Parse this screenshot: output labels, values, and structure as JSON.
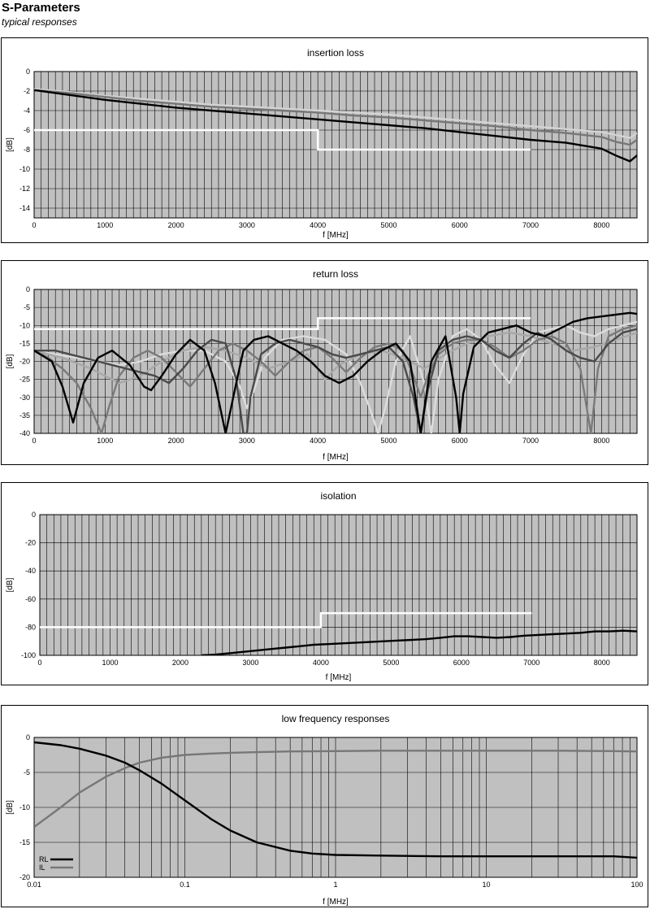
{
  "page": {
    "title": "S-Parameters",
    "subtitle": "typical responses"
  },
  "chart_data": [
    {
      "id": "insertion",
      "type": "line",
      "title": "insertion loss",
      "xlabel": "f [MHz]",
      "ylabel": "[dB]",
      "xlim": [
        0,
        8500
      ],
      "ylim": [
        -15,
        0
      ],
      "x_ticks": [
        0,
        1000,
        2000,
        3000,
        4000,
        5000,
        6000,
        7000,
        8000
      ],
      "y_ticks": [
        0,
        -2,
        -4,
        -6,
        -8,
        -10,
        -12,
        -14
      ],
      "grid": true,
      "series": [
        {
          "color": "#000000",
          "x": [
            0,
            500,
            1000,
            1500,
            2000,
            2500,
            3000,
            3500,
            4000,
            4500,
            5000,
            5500,
            6000,
            6500,
            7000,
            7500,
            8000,
            8200,
            8400,
            8500
          ],
          "y": [
            -1.9,
            -2.4,
            -2.9,
            -3.3,
            -3.7,
            -4.0,
            -4.3,
            -4.6,
            -4.9,
            -5.2,
            -5.5,
            -5.8,
            -6.2,
            -6.6,
            -7.0,
            -7.3,
            -7.9,
            -8.6,
            -9.2,
            -8.6
          ]
        },
        {
          "color": "#777777",
          "x": [
            0,
            500,
            1000,
            1500,
            2000,
            2500,
            3000,
            3500,
            4000,
            4500,
            5000,
            5500,
            6000,
            6500,
            7000,
            7500,
            8000,
            8200,
            8400,
            8500
          ],
          "y": [
            -1.9,
            -2.2,
            -2.6,
            -3.0,
            -3.3,
            -3.6,
            -3.8,
            -4.0,
            -4.2,
            -4.5,
            -4.7,
            -5.0,
            -5.3,
            -5.6,
            -6.0,
            -6.3,
            -6.7,
            -7.2,
            -7.5,
            -7.0
          ]
        },
        {
          "color": "#d4d4d4",
          "x": [
            0,
            500,
            1000,
            1500,
            2000,
            2500,
            3000,
            3500,
            4000,
            4500,
            5000,
            5500,
            6000,
            6500,
            7000,
            7500,
            8000,
            8200,
            8400,
            8500
          ],
          "y": [
            -1.8,
            -2.1,
            -2.5,
            -2.8,
            -3.1,
            -3.4,
            -3.6,
            -3.8,
            -4.0,
            -4.2,
            -4.4,
            -4.7,
            -5.0,
            -5.3,
            -5.6,
            -5.9,
            -6.2,
            -6.5,
            -6.8,
            -6.3
          ]
        }
      ],
      "limit_line": {
        "color": "#ffffff",
        "x": [
          0,
          4000,
          4000,
          7000
        ],
        "y": [
          -6,
          -6,
          -8,
          -8
        ]
      }
    },
    {
      "id": "return",
      "type": "line",
      "title": "return loss",
      "xlabel": "f [MHz]",
      "ylabel": "[dB]",
      "xlim": [
        0,
        8500
      ],
      "ylim": [
        -40,
        0
      ],
      "x_ticks": [
        0,
        1000,
        2000,
        3000,
        4000,
        5000,
        6000,
        7000,
        8000
      ],
      "y_ticks": [
        0,
        -5,
        -10,
        -15,
        -20,
        -25,
        -30,
        -35,
        -40
      ],
      "grid": true,
      "series": [
        {
          "color": "#000000",
          "x": [
            0,
            250,
            400,
            550,
            700,
            900,
            1100,
            1350,
            1550,
            1650,
            1800,
            2000,
            2200,
            2400,
            2550,
            2700,
            2850,
            2950,
            3100,
            3300,
            3500,
            3700,
            3900,
            4100,
            4300,
            4500,
            4700,
            4900,
            5100,
            5300,
            5450,
            5600,
            5800,
            5950,
            6000,
            6050,
            6200,
            6400,
            6600,
            6800,
            7000,
            7200,
            7400,
            7600,
            7800,
            8000,
            8200,
            8400,
            8500
          ],
          "y": [
            -17,
            -20,
            -27,
            -37,
            -26,
            -19,
            -17,
            -21,
            -27,
            -28,
            -24,
            -18,
            -14,
            -17,
            -26,
            -40,
            -26,
            -17,
            -14,
            -13,
            -15,
            -17,
            -20,
            -24,
            -26,
            -24,
            -20,
            -17,
            -15,
            -20,
            -40,
            -20,
            -13,
            -30,
            -40,
            -29,
            -16,
            -12,
            -11,
            -10,
            -12,
            -13,
            -11,
            -9,
            -8,
            -7.5,
            -7,
            -6.5,
            -6.8
          ]
        },
        {
          "color": "#4a4a4a",
          "x": [
            0,
            300,
            500,
            700,
            900,
            1100,
            1300,
            1500,
            1700,
            1900,
            2100,
            2300,
            2500,
            2700,
            2850,
            2950,
            3000,
            3050,
            3200,
            3400,
            3600,
            3800,
            4000,
            4200,
            4400,
            4600,
            4800,
            5000,
            5200,
            5350,
            5450,
            5550,
            5700,
            5900,
            6100,
            6300,
            6500,
            6700,
            6900,
            7100,
            7300,
            7500,
            7700,
            7900,
            8100,
            8300,
            8500
          ],
          "y": [
            -17,
            -17,
            -18,
            -19,
            -20,
            -21,
            -22,
            -23,
            -24,
            -26,
            -22,
            -17,
            -14,
            -15,
            -25,
            -40,
            -40,
            -30,
            -18,
            -15,
            -14,
            -15,
            -16,
            -18,
            -19,
            -18,
            -17,
            -16,
            -20,
            -30,
            -40,
            -28,
            -17,
            -14,
            -13,
            -14,
            -17,
            -19,
            -15,
            -12,
            -14,
            -17,
            -19,
            -20,
            -15,
            -12,
            -11
          ]
        },
        {
          "color": "#7a7a7a",
          "x": [
            0,
            200,
            400,
            600,
            800,
            950,
            1050,
            1200,
            1400,
            1600,
            1800,
            2000,
            2200,
            2400,
            2600,
            2800,
            3000,
            3200,
            3400,
            3600,
            3800,
            4000,
            4200,
            4400,
            4600,
            4800,
            5000,
            5200,
            5350,
            5450,
            5550,
            5700,
            5900,
            6100,
            6300,
            6500,
            6700,
            6900,
            7100,
            7300,
            7500,
            7700,
            7850,
            7950,
            8100,
            8300,
            8500
          ],
          "y": [
            -17,
            -19,
            -22,
            -26,
            -33,
            -40,
            -33,
            -24,
            -19,
            -17,
            -19,
            -23,
            -27,
            -22,
            -17,
            -15,
            -17,
            -20,
            -24,
            -20,
            -17,
            -16,
            -19,
            -23,
            -19,
            -16,
            -15,
            -17,
            -24,
            -30,
            -24,
            -18,
            -15,
            -14,
            -14,
            -16,
            -19,
            -17,
            -14,
            -13,
            -15,
            -22,
            -40,
            -22,
            -13,
            -11,
            -10
          ]
        },
        {
          "color": "#a8a8a8",
          "x": [
            0,
            400,
            800,
            1200,
            1500,
            1800,
            2100,
            2400,
            2700,
            3000,
            3300,
            3600,
            3850,
            4000,
            4100,
            4300,
            4600,
            4900,
            5200,
            5500,
            5800,
            6100,
            6400,
            6700,
            7000,
            7300,
            7600,
            7900,
            8200,
            8500
          ],
          "y": [
            -17,
            -19,
            -22,
            -26,
            -24,
            -20,
            -17,
            -16,
            -17,
            -19,
            -22,
            -20,
            -18,
            -22,
            -25,
            -21,
            -18,
            -17,
            -19,
            -22,
            -18,
            -15,
            -13,
            -12,
            -13,
            -15,
            -17,
            -16,
            -14,
            -12
          ]
        },
        {
          "color": "#dcdcdc",
          "x": [
            0,
            300,
            600,
            900,
            1200,
            1500,
            1800,
            2100,
            2400,
            2700,
            2900,
            3000,
            3100,
            3250,
            3500,
            3800,
            4100,
            4400,
            4600,
            4750,
            4850,
            4950,
            5100,
            5300,
            5500,
            5600,
            5700,
            5900,
            6100,
            6300,
            6500,
            6700,
            6900,
            7100,
            7300,
            7500,
            7700,
            7900,
            8100,
            8300,
            8500
          ],
          "y": [
            -17,
            -18,
            -19,
            -20,
            -21,
            -20,
            -18,
            -17,
            -17,
            -20,
            -27,
            -33,
            -28,
            -19,
            -14,
            -13,
            -14,
            -18,
            -26,
            -34,
            -40,
            -33,
            -20,
            -13,
            -26,
            -40,
            -25,
            -13,
            -11,
            -14,
            -21,
            -26,
            -18,
            -12,
            -11,
            -10,
            -12,
            -13,
            -11,
            -10,
            -9
          ]
        }
      ],
      "limit_line": {
        "color": "#ffffff",
        "x": [
          0,
          4000,
          4000,
          7000
        ],
        "y": [
          -11,
          -11,
          -8,
          -8
        ]
      }
    },
    {
      "id": "isolation",
      "type": "line",
      "title": "isolation",
      "xlabel": "f [MHz]",
      "ylabel": "[dB]",
      "xlim": [
        0,
        8500
      ],
      "ylim": [
        -100,
        0
      ],
      "x_ticks": [
        0,
        1000,
        2000,
        3000,
        4000,
        5000,
        6000,
        7000,
        8000
      ],
      "y_ticks": [
        0,
        -20,
        -40,
        -60,
        -80,
        -100
      ],
      "grid": true,
      "series": [
        {
          "color": "#000000",
          "x": [
            2300,
            2500,
            2700,
            2900,
            3100,
            3300,
            3500,
            3700,
            3900,
            4100,
            4300,
            4500,
            4700,
            4900,
            5100,
            5300,
            5500,
            5700,
            5900,
            6100,
            6300,
            6500,
            6700,
            6900,
            7100,
            7300,
            7500,
            7700,
            7900,
            8100,
            8300,
            8500
          ],
          "y": [
            -100,
            -99.5,
            -98.5,
            -97.5,
            -96.5,
            -95.5,
            -94.5,
            -93.5,
            -92.5,
            -92,
            -91.5,
            -91,
            -90.5,
            -90,
            -89.5,
            -89,
            -88.5,
            -87.5,
            -86.5,
            -86.5,
            -87,
            -87.5,
            -87,
            -86,
            -85.5,
            -85,
            -84.5,
            -84,
            -83,
            -83,
            -82.5,
            -83
          ]
        }
      ],
      "limit_line": {
        "color": "#ffffff",
        "x": [
          0,
          4000,
          4000,
          7000
        ],
        "y": [
          -80,
          -80,
          -70,
          -70
        ]
      }
    },
    {
      "id": "lowfreq",
      "type": "line",
      "title": "low frequency responses",
      "xlabel": "f [MHz]",
      "ylabel": "[dB]",
      "x_scale": "log",
      "xlim": [
        0.01,
        100
      ],
      "ylim": [
        -20,
        0
      ],
      "x_ticks": [
        0.01,
        0.1,
        1,
        10,
        100
      ],
      "x_tick_labels": [
        "0.01",
        "0.1",
        "1",
        "10",
        "100"
      ],
      "y_ticks": [
        0,
        -5,
        -10,
        -15,
        -20
      ],
      "grid": true,
      "legend": {
        "position": "bottom-left",
        "entries": [
          "RL",
          "IL"
        ]
      },
      "series": [
        {
          "name": "RL",
          "color": "#000000",
          "x": [
            0.01,
            0.015,
            0.02,
            0.03,
            0.04,
            0.05,
            0.07,
            0.1,
            0.15,
            0.2,
            0.3,
            0.5,
            0.7,
            1,
            2,
            5,
            10,
            30,
            70,
            100
          ],
          "y": [
            -0.7,
            -1.1,
            -1.6,
            -2.6,
            -3.6,
            -4.7,
            -6.6,
            -9.0,
            -11.7,
            -13.3,
            -15.0,
            -16.2,
            -16.6,
            -16.8,
            -16.9,
            -17.0,
            -17.0,
            -17.0,
            -17.0,
            -17.2
          ]
        },
        {
          "name": "IL",
          "color": "#777777",
          "x": [
            0.01,
            0.015,
            0.02,
            0.03,
            0.04,
            0.05,
            0.07,
            0.1,
            0.15,
            0.2,
            0.3,
            0.5,
            1,
            2,
            5,
            10,
            30,
            70,
            100
          ],
          "y": [
            -12.8,
            -10.0,
            -7.9,
            -5.6,
            -4.4,
            -3.6,
            -2.9,
            -2.5,
            -2.3,
            -2.2,
            -2.1,
            -2.0,
            -1.95,
            -1.9,
            -1.9,
            -1.9,
            -1.9,
            -1.95,
            -2.0
          ]
        }
      ]
    }
  ]
}
